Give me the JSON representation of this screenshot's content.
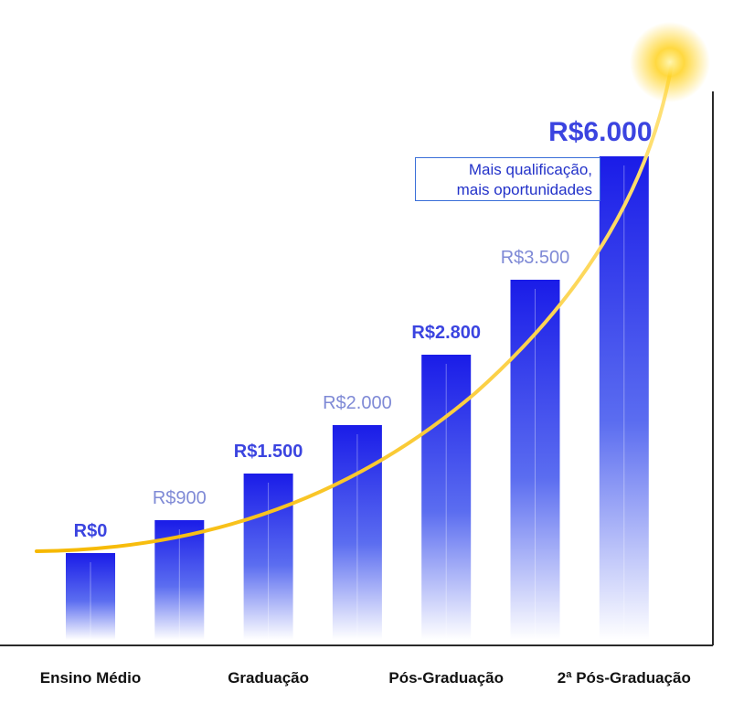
{
  "chart_data": {
    "type": "bar",
    "categories": [
      "Ensino Médio",
      "",
      "Graduação",
      "",
      "Pós-Graduação",
      "",
      "2ª Pós-Graduação"
    ],
    "values": [
      0,
      900,
      1500,
      2000,
      2800,
      3500,
      6000
    ],
    "value_labels": [
      "R$0",
      "R$900",
      "R$1.500",
      "R$2.000",
      "R$2.800",
      "R$3.500",
      "R$6.000"
    ],
    "label_emphasis": [
      "bold",
      "light",
      "bold",
      "light",
      "bold",
      "light",
      "bold-large"
    ],
    "ylim": [
      0,
      6000
    ],
    "grid": false,
    "trend_curve": true,
    "annotation": {
      "line1": "Mais qualificação,",
      "line2": "mais oportunidades"
    },
    "colors": {
      "bar_top": "#1a1ce8",
      "bar_bottom": "#ffffff",
      "label_bold": "#3b44e0",
      "label_light": "#7f8ad6",
      "curve": "#f6c21c",
      "glow": "#ffd21f",
      "axis": "#2a2a2a"
    }
  }
}
